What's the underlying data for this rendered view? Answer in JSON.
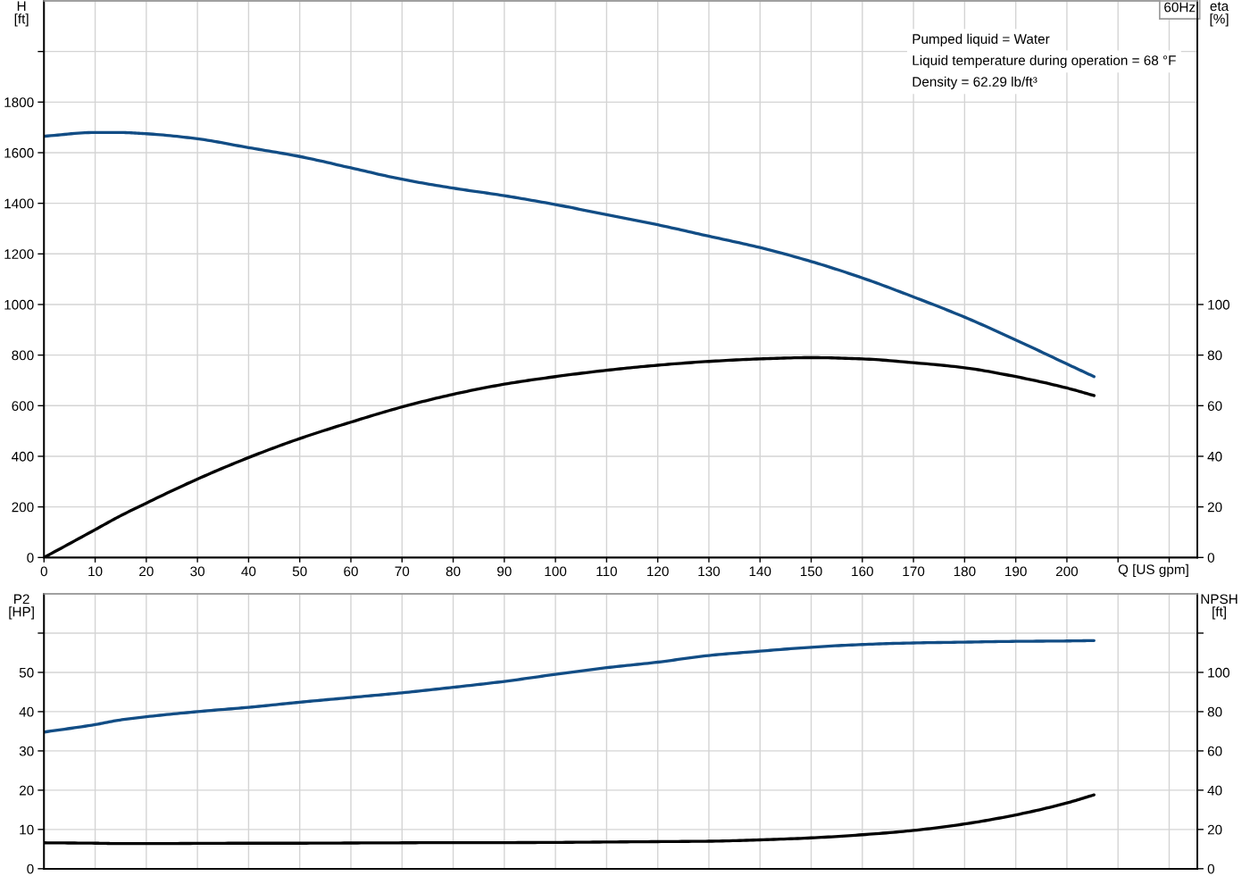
{
  "chart_data": [
    {
      "type": "line",
      "xlabel": "Q [US gpm]",
      "ylabel": "H [ft]",
      "y2label": "eta [%]",
      "annotations": [
        "60Hz",
        "Pumped liquid = Water",
        "Liquid temperature during operation = 68 °F",
        "Density = 62.29 lb/ft³"
      ],
      "x": [
        0,
        10,
        14.5,
        20,
        30,
        40,
        50,
        60,
        70,
        80,
        90,
        100,
        110,
        120,
        130,
        140,
        150,
        160,
        170,
        180,
        190,
        200,
        205.3
      ],
      "series": [
        {
          "color": "#124d85",
          "values": [
            1665,
            1680,
            1680,
            1675,
            1655,
            1620,
            1585,
            1540,
            1495,
            1460,
            1430,
            1395,
            1355,
            1315,
            1270,
            1225,
            1170,
            1105,
            1030,
            950,
            860,
            765,
            715
          ]
        },
        {
          "color": "#000000",
          "axis": "y2",
          "values": [
            0,
            11,
            16,
            21.5,
            31,
            39.5,
            47,
            53.5,
            59.5,
            64.5,
            68.5,
            71.5,
            74,
            76,
            77.5,
            78.5,
            79,
            78.5,
            77,
            75,
            71.5,
            67,
            64
          ]
        }
      ],
      "xlim": [
        0,
        225.5
      ],
      "xticks": [
        0,
        10,
        20,
        30,
        40,
        50,
        60,
        70,
        80,
        90,
        100,
        110,
        120,
        130,
        140,
        150,
        160,
        170,
        180,
        190,
        200,
        {
          "value": 210,
          "label": null
        },
        {
          "value": 220,
          "label": null
        }
      ],
      "ylim": [
        0,
        2200
      ],
      "yticks": [
        0,
        200,
        400,
        600,
        800,
        1000,
        1200,
        1400,
        1600,
        1800,
        {
          "value": 2000,
          "label": null
        }
      ],
      "y2lim": [
        0,
        220
      ],
      "y2ticks": [
        0,
        20,
        40,
        60,
        80,
        100
      ],
      "grid": true,
      "line_style": "solid"
    },
    {
      "type": "line",
      "ylabel": "P2 [HP]",
      "y2label": "NPSH [ft]",
      "x": [
        0,
        10,
        14.5,
        20,
        30,
        40,
        50,
        60,
        70,
        80,
        90,
        100,
        110,
        120,
        130,
        140,
        150,
        160,
        170,
        180,
        190,
        200,
        205.3
      ],
      "series": [
        {
          "color": "#124d85",
          "values": [
            34.8,
            36.7,
            37.8,
            38.7,
            40.0,
            41.1,
            42.4,
            43.6,
            44.8,
            46.2,
            47.7,
            49.5,
            51.2,
            52.6,
            54.3,
            55.4,
            56.4,
            57.1,
            57.5,
            57.7,
            57.9,
            58.0,
            58.1
          ]
        },
        {
          "color": "#000000",
          "axis": "y2",
          "values": [
            13.2,
            13.0,
            12.8,
            12.8,
            12.9,
            13.0,
            13.0,
            13.1,
            13.2,
            13.3,
            13.3,
            13.4,
            13.6,
            13.8,
            14.0,
            14.7,
            15.7,
            17.3,
            19.5,
            22.8,
            27.4,
            33.5,
            37.6
          ]
        }
      ],
      "xlim": [
        0,
        225.5
      ],
      "xticks": [
        0,
        10,
        20,
        30,
        40,
        50,
        60,
        70,
        80,
        90,
        100,
        110,
        120,
        130,
        140,
        150,
        160,
        170,
        180,
        190,
        200,
        210,
        220
      ],
      "ylim": [
        0,
        70
      ],
      "yticks": [
        0,
        10,
        20,
        30,
        40,
        50,
        {
          "value": 60,
          "label": null
        }
      ],
      "y2lim": [
        0,
        140
      ],
      "y2ticks": [
        0,
        20,
        40,
        60,
        80,
        100,
        {
          "value": 120,
          "label": null
        }
      ],
      "grid": true,
      "line_style": "solid",
      "tick_labels": "y"
    }
  ]
}
